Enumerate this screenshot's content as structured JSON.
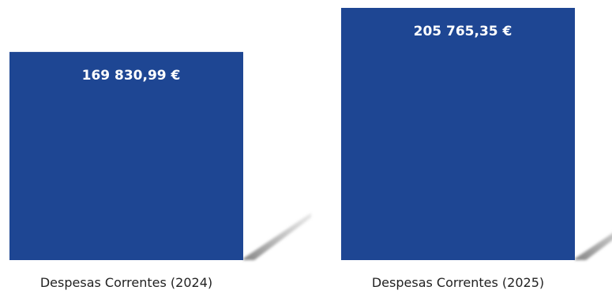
{
  "chart_data": {
    "type": "bar",
    "categories": [
      "Despesas Correntes (2024)",
      "Despesas Correntes (2025)"
    ],
    "values": [
      169830.99,
      205765.35
    ],
    "value_labels": [
      "169 830,99 €",
      "205 765,35 €"
    ],
    "title": "",
    "xlabel": "",
    "ylabel": "",
    "grid": false,
    "legend": "none",
    "colors": {
      "bar": "#1e4693",
      "shadow": "#a9a9a9"
    }
  }
}
